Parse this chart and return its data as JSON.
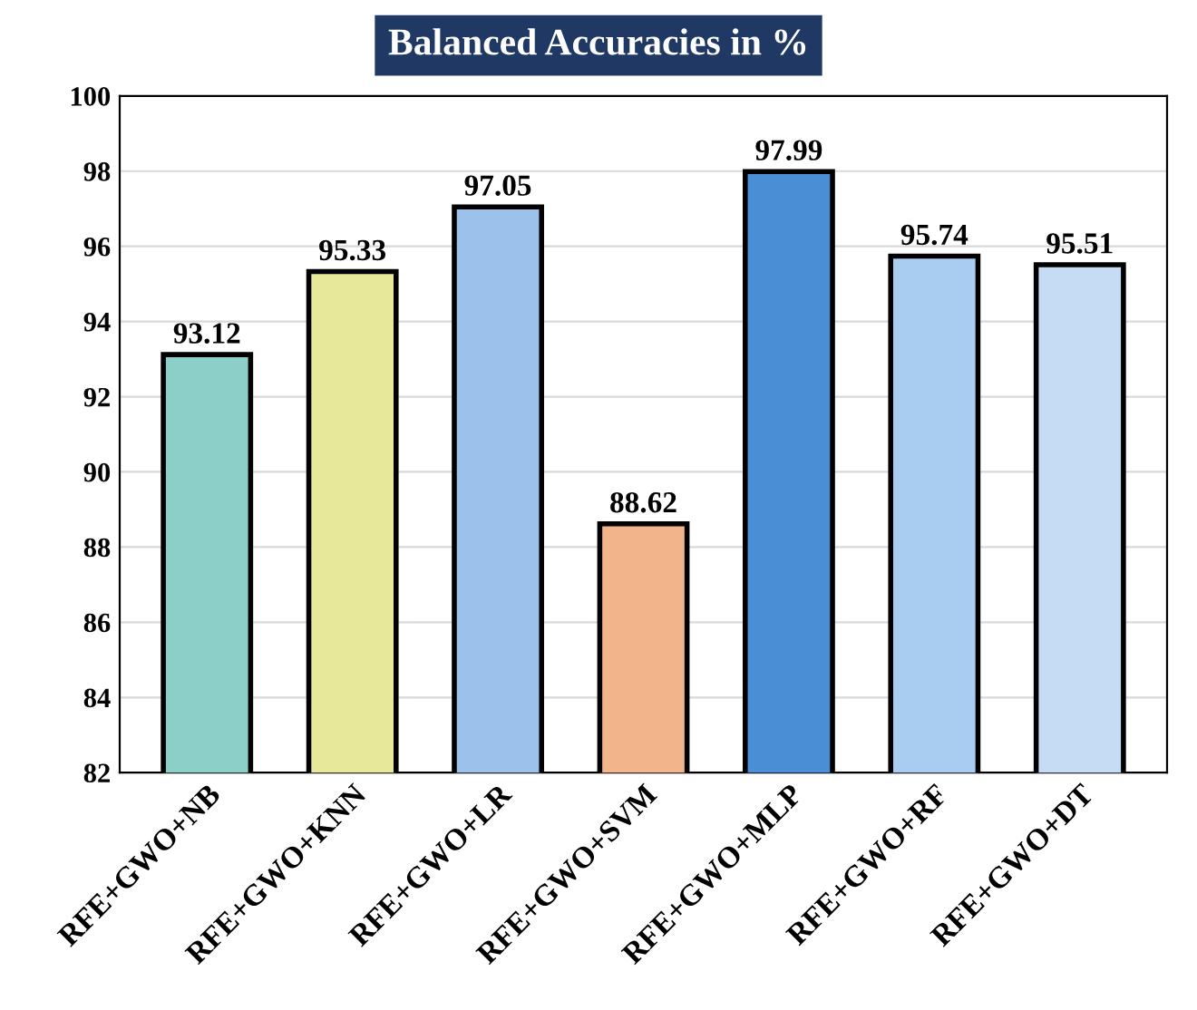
{
  "chart_data": {
    "type": "bar",
    "title": "Balanced Accuracies in %",
    "categories": [
      "RFE+GWO+NB",
      "RFE+GWO+KNN",
      "RFE+GWO+LR",
      "RFE+GWO+SVM",
      "RFE+GWO+MLP",
      "RFE+GWO+RF",
      "RFE+GWO+DT"
    ],
    "values": [
      93.12,
      95.33,
      97.05,
      88.62,
      97.99,
      95.74,
      95.51
    ],
    "colors": [
      "#8ccfc8",
      "#e8e89a",
      "#9cc2ec",
      "#f2b48a",
      "#4a8fd6",
      "#a9cdf0",
      "#c4ddf5"
    ],
    "ylim": [
      82,
      100
    ],
    "yticks": [
      82,
      84,
      86,
      88,
      90,
      92,
      94,
      96,
      98,
      100
    ],
    "grid": "y",
    "data_labels": true
  }
}
